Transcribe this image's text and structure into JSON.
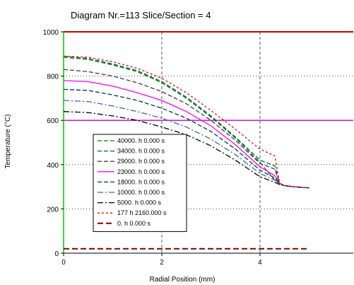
{
  "chart_data": {
    "type": "line",
    "title": "Diagram Nr.=113 Slice/Section = 4",
    "xlabel": "Radial Position (mm)",
    "ylabel": "Temperature (°C)",
    "xlim": [
      0,
      5.9
    ],
    "ylim": [
      0,
      1000
    ],
    "x_ticks": [
      "0",
      "2",
      "4"
    ],
    "y_ticks": [
      "0",
      "200",
      "400",
      "600",
      "800",
      "1000"
    ],
    "grid": "dashed at x=2,4; dotted at y=200,400,600,800",
    "reference_lines": [
      {
        "y": 1000,
        "color": "#cc0000"
      },
      {
        "y": 600,
        "color": "#cc00cc"
      },
      {
        "x": 0,
        "color": "#00cc00"
      }
    ],
    "legend_position": "lower-left",
    "series": [
      {
        "name": "40000. h 0.000 s",
        "color": "#008000",
        "dash": "6,3",
        "x": [
          0,
          0.5,
          1.0,
          1.5,
          2.0,
          2.5,
          3.0,
          3.5,
          4.0,
          4.3,
          4.4,
          4.5,
          4.7,
          5.0
        ],
        "y": [
          885,
          875,
          850,
          820,
          770,
          700,
          615,
          520,
          410,
          330,
          315,
          305,
          300,
          295
        ]
      },
      {
        "name": "34000. h 0.000 s",
        "color": "#006060",
        "dash": "6,3",
        "x": [
          0,
          0.5,
          1.0,
          1.5,
          2.0,
          2.5,
          3.0,
          3.5,
          4.0,
          4.3,
          4.4,
          4.5,
          4.7,
          5.0
        ],
        "y": [
          890,
          880,
          855,
          825,
          775,
          705,
          620,
          525,
          420,
          395,
          315,
          305,
          300,
          295
        ]
      },
      {
        "name": "29000. h 0.000 s",
        "color": "#404040",
        "dash": "6,3",
        "x": [
          0,
          0.5,
          1.0,
          1.5,
          2.0,
          2.5,
          3.0,
          3.5,
          4.0,
          4.3,
          4.4,
          4.5,
          4.7,
          5.0
        ],
        "y": [
          830,
          820,
          800,
          770,
          730,
          675,
          600,
          510,
          405,
          380,
          315,
          305,
          300,
          295
        ]
      },
      {
        "name": "23000. h 0.000 s",
        "color": "#ff00ff",
        "dash": "",
        "x": [
          0,
          0.5,
          1.0,
          1.5,
          2.0,
          2.5,
          3.0,
          3.5,
          4.0,
          4.3,
          4.4,
          4.5,
          4.7,
          5.0
        ],
        "y": [
          780,
          775,
          755,
          725,
          690,
          640,
          575,
          490,
          390,
          350,
          315,
          305,
          300,
          295
        ]
      },
      {
        "name": "18000. h 0.000 s",
        "color": "#004040",
        "dash": "6,3",
        "x": [
          0,
          0.5,
          1.0,
          1.5,
          2.0,
          2.5,
          3.0,
          3.5,
          4.0,
          4.3,
          4.4,
          4.5,
          4.7,
          5.0
        ],
        "y": [
          740,
          735,
          715,
          690,
          655,
          610,
          550,
          470,
          375,
          340,
          315,
          305,
          300,
          295
        ]
      },
      {
        "name": "10000. h 0.000 s",
        "color": "#4060c0",
        "dash": "8,3,2,3",
        "x": [
          0,
          0.5,
          1.0,
          1.5,
          2.0,
          2.5,
          3.0,
          3.5,
          4.0,
          4.3,
          4.4,
          4.5,
          4.7,
          5.0
        ],
        "y": [
          690,
          685,
          665,
          640,
          610,
          570,
          515,
          445,
          360,
          330,
          312,
          305,
          300,
          295
        ]
      },
      {
        "name": "5000. h 0.000 s",
        "color": "#000000",
        "dash": "8,3,2,3",
        "x": [
          0,
          0.5,
          1.0,
          1.5,
          2.0,
          2.5,
          3.0,
          3.5,
          4.0,
          4.3,
          4.4,
          4.5,
          4.7,
          5.0
        ],
        "y": [
          640,
          635,
          620,
          600,
          570,
          535,
          485,
          420,
          345,
          320,
          310,
          305,
          300,
          295
        ]
      },
      {
        "name": "177 h 2160.000 s",
        "color": "#ff0000",
        "dash": "3,3",
        "x": [
          0,
          0.5,
          1.0,
          1.5,
          2.0,
          2.5,
          3.0,
          3.5,
          4.0,
          4.3,
          4.4,
          4.5,
          4.7,
          5.0
        ],
        "y": [
          890,
          885,
          865,
          835,
          790,
          725,
          645,
          560,
          470,
          440,
          315,
          305,
          300,
          295
        ]
      },
      {
        "name": "0. h 0.000 s",
        "color": "#800000",
        "dash": "8,4",
        "x": [
          0,
          5.0
        ],
        "y": [
          20,
          20
        ]
      }
    ]
  }
}
